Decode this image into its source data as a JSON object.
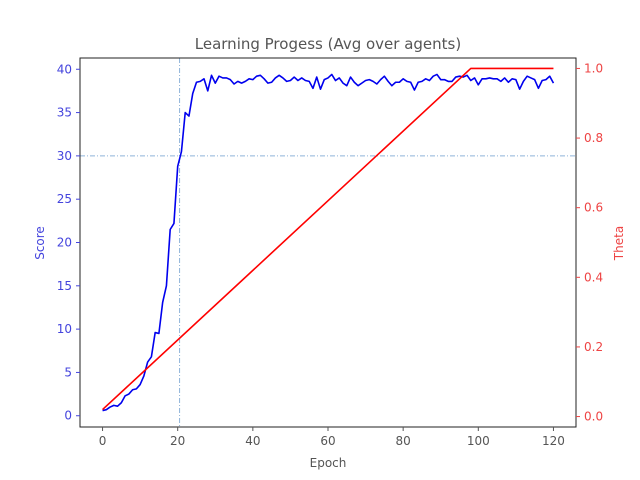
{
  "chart_data": {
    "type": "line",
    "title": "Learning Progess (Avg over agents)",
    "xlabel": "Epoch",
    "ylabel_left": "Score",
    "ylabel_right": "Theta",
    "xlim": [
      -6,
      126
    ],
    "ylim_left": [
      -1.3,
      41.3
    ],
    "ylim_right": [
      -0.03,
      1.03
    ],
    "x_ticks": [
      0,
      20,
      40,
      60,
      80,
      100,
      120
    ],
    "y_left_ticks": [
      0,
      5,
      10,
      15,
      20,
      25,
      30,
      35,
      40
    ],
    "y_right_ticks": [
      0.0,
      0.2,
      0.4,
      0.6,
      0.8,
      1.0
    ],
    "y_right_tick_labels": [
      "0.0",
      "0.2",
      "0.4",
      "0.6",
      "0.8",
      "1.0"
    ],
    "reference_lines": {
      "x": 20.5,
      "y_left": 30
    },
    "colors": {
      "score": "#0000ee",
      "theta": "#ff0000",
      "left_axis": "#4444dd",
      "right_axis": "#ee4444",
      "reference": "#8fb4d9",
      "frame": "#222222"
    },
    "series": [
      {
        "axis": "left",
        "x": [
          0,
          1,
          2,
          3,
          4,
          5,
          6,
          7,
          8,
          9,
          10,
          11,
          12,
          13,
          14,
          15,
          16,
          17,
          18,
          19,
          20,
          21,
          22,
          23,
          24,
          25,
          26,
          27,
          28,
          29,
          30,
          31,
          32,
          33,
          34,
          35,
          36,
          37,
          38,
          39,
          40,
          41,
          42,
          43,
          44,
          45,
          46,
          47,
          48,
          49,
          50,
          51,
          52,
          53,
          54,
          55,
          56,
          57,
          58,
          59,
          60,
          61,
          62,
          63,
          64,
          65,
          66,
          67,
          68,
          69,
          70,
          71,
          72,
          73,
          74,
          75,
          76,
          77,
          78,
          79,
          80,
          81,
          82,
          83,
          84,
          85,
          86,
          87,
          88,
          89,
          90,
          91,
          92,
          93,
          94,
          95,
          96,
          97,
          98,
          99,
          100,
          101,
          102,
          103,
          104,
          105,
          106,
          107,
          108,
          109,
          110,
          111,
          112,
          113,
          114,
          115,
          116,
          117,
          118,
          119,
          120
        ],
        "values": [
          0.6,
          0.7,
          1.0,
          1.2,
          1.1,
          1.5,
          2.3,
          2.5,
          3.0,
          3.1,
          3.6,
          4.6,
          6.2,
          6.8,
          9.6,
          9.5,
          13.1,
          15.0,
          21.5,
          22.2,
          28.8,
          30.5,
          35.0,
          34.6,
          37.2,
          38.5,
          38.6,
          38.9,
          37.5,
          39.3,
          38.4,
          39.2,
          39.0,
          39.0,
          38.8,
          38.3,
          38.6,
          38.4,
          38.6,
          38.9,
          38.8,
          39.2,
          39.3,
          38.9,
          38.4,
          38.5,
          39.0,
          39.3,
          39.0,
          38.6,
          38.7,
          39.1,
          38.7,
          39.0,
          38.7,
          38.6,
          37.8,
          39.1,
          37.7,
          38.8,
          39.0,
          39.4,
          38.7,
          39.0,
          38.4,
          38.1,
          39.1,
          38.5,
          38.1,
          38.4,
          38.7,
          38.8,
          38.6,
          38.3,
          38.8,
          39.2,
          38.6,
          38.1,
          38.5,
          38.5,
          38.9,
          38.6,
          38.5,
          37.6,
          38.5,
          38.6,
          38.9,
          38.7,
          39.2,
          39.4,
          38.8,
          38.8,
          38.6,
          38.6,
          39.1,
          39.2,
          39.1,
          39.3,
          38.7,
          39.0,
          38.2,
          38.9,
          38.9,
          39.0,
          38.9,
          38.9,
          38.6,
          39.0,
          38.5,
          38.9,
          38.8,
          37.7,
          38.6,
          39.2,
          39.0,
          38.8,
          37.8,
          38.7,
          38.8,
          39.2,
          38.4
        ]
      },
      {
        "axis": "right",
        "x": [
          0,
          98,
          120
        ],
        "values": [
          0.02,
          1.0,
          1.0
        ]
      }
    ],
    "grid": false
  }
}
